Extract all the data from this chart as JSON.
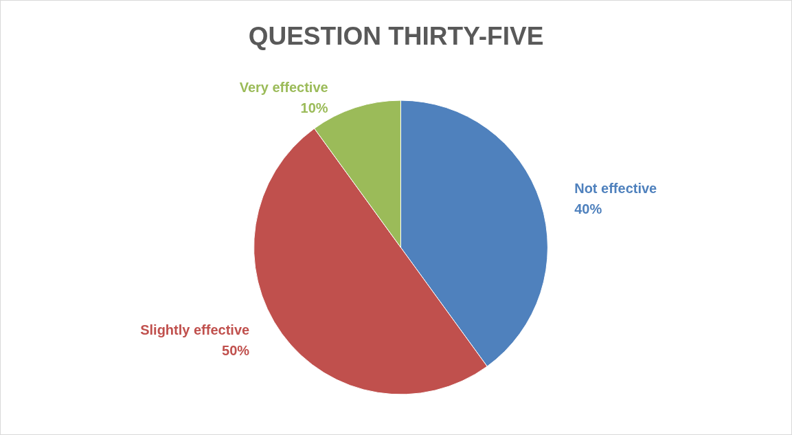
{
  "chart_data": {
    "type": "pie",
    "title": "QUESTION THIRTY-FIVE",
    "categories": [
      "Not effective",
      "Slightly effective",
      "Very effective"
    ],
    "values": [
      40,
      50,
      10
    ],
    "colors": [
      "#4f81bd",
      "#c0504d",
      "#9bbb59"
    ],
    "value_labels": [
      "40%",
      "50%",
      "10%"
    ],
    "legend": false
  }
}
